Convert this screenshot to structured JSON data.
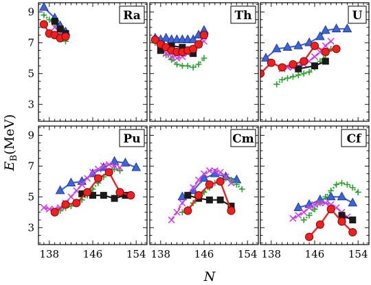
{
  "chart_data": {
    "type": "line",
    "xlabel": "N",
    "ylabel": "E_B(MeV)",
    "ylabel_parts": {
      "italic": "E",
      "sub": "B",
      "unit": "(MeV)"
    },
    "xlim": [
      136,
      156
    ],
    "ylim": [
      1.9,
      9.6
    ],
    "xticks": [
      138,
      146,
      154
    ],
    "yticks": [
      3,
      5,
      7,
      9
    ],
    "colors": {
      "blue": "#3a64d8",
      "black": "#1a1a1a",
      "red": "#ee2020",
      "magenta": "#d040e8",
      "green": "#28a428"
    },
    "panels": [
      {
        "label": "Ra",
        "series": [
          {
            "style": "blue-triangle",
            "x": [
              137,
              139,
              140,
              141
            ],
            "y": [
              9.3,
              8.6,
              8.1,
              7.7
            ]
          },
          {
            "style": "green-plus",
            "x": [
              137,
              138,
              139,
              140,
              141
            ],
            "y": [
              8.8,
              8.5,
              8.2,
              7.6,
              7.1
            ]
          },
          {
            "style": "magenta-cross",
            "x": [
              139,
              140,
              141
            ],
            "y": [
              8.0,
              7.7,
              7.5
            ]
          },
          {
            "style": "black-square",
            "x": [
              139,
              140,
              141
            ],
            "y": [
              8.4,
              7.9,
              7.6
            ]
          },
          {
            "style": "red-circle",
            "x": [
              137,
              138,
              139,
              140,
              141
            ],
            "y": [
              8.2,
              7.6,
              7.5,
              7.3,
              7.4
            ]
          }
        ]
      },
      {
        "label": "Th",
        "series": [
          {
            "style": "blue-triangle",
            "x": [
              137,
              138,
              139,
              140,
              141,
              142,
              143,
              144,
              145,
              146
            ],
            "y": [
              7.3,
              7.2,
              7.3,
              7.2,
              7.2,
              7.2,
              7.2,
              7.2,
              7.5,
              7.8
            ]
          },
          {
            "style": "magenta-cross",
            "x": [
              138,
              139,
              140,
              141,
              142,
              143,
              144,
              145,
              146
            ],
            "y": [
              6.6,
              6.3,
              6.1,
              6.0,
              6.1,
              6.3,
              6.6,
              6.9,
              7.1
            ]
          },
          {
            "style": "green-plus",
            "x": [
              137,
              138,
              139,
              140,
              141,
              142,
              143,
              144,
              145,
              146
            ],
            "y": [
              7.0,
              6.6,
              6.2,
              5.9,
              5.6,
              5.5,
              5.5,
              5.4,
              5.6,
              6.0
            ]
          },
          {
            "style": "black-square",
            "x": [
              138,
              140,
              142,
              144
            ],
            "y": [
              6.5,
              6.8,
              6.7,
              6.3
            ]
          },
          {
            "style": "red-circle",
            "x": [
              137,
              138,
              139,
              140,
              141,
              142,
              143,
              144,
              145,
              146
            ],
            "y": [
              7.2,
              6.9,
              6.7,
              6.5,
              6.4,
              6.4,
              6.5,
              6.6,
              6.9,
              7.5
            ]
          }
        ]
      },
      {
        "label": "U",
        "series": [
          {
            "style": "blue-triangle",
            "x": [
              137,
              139,
              141,
              143,
              145,
              147,
              148,
              150,
              152
            ],
            "y": [
              6.0,
              6.6,
              6.7,
              6.8,
              7.0,
              7.4,
              7.8,
              7.9,
              7.9
            ]
          },
          {
            "style": "green-plus",
            "x": [
              139,
              140,
              141,
              142,
              143,
              144,
              145,
              146,
              147,
              148,
              149
            ],
            "y": [
              4.3,
              4.6,
              4.7,
              4.8,
              4.9,
              5.0,
              5.1,
              5.4,
              5.8,
              6.2,
              6.6
            ]
          },
          {
            "style": "magenta-cross",
            "x": [
              140,
              141,
              142,
              143,
              144,
              145,
              146,
              147,
              148,
              149
            ],
            "y": [
              5.3,
              5.4,
              5.4,
              5.5,
              5.6,
              5.8,
              6.1,
              6.4,
              6.8,
              7.1
            ]
          },
          {
            "style": "black-square",
            "x": [
              143,
              146,
              148
            ],
            "y": [
              5.3,
              5.5,
              5.8
            ]
          },
          {
            "style": "red-circle",
            "x": [
              136,
              138,
              140,
              142,
              144,
              146,
              148,
              150
            ],
            "y": [
              5.0,
              5.7,
              5.4,
              5.6,
              5.8,
              6.8,
              6.4,
              6.6
            ]
          }
        ]
      },
      {
        "label": "Pu",
        "series": [
          {
            "style": "blue-triangle",
            "x": [
              140,
              142,
              144,
              146,
              148,
              150,
              152,
              154
            ],
            "y": [
              5.4,
              5.9,
              6.0,
              6.5,
              6.9,
              7.3,
              7.2,
              6.9
            ]
          },
          {
            "style": "magenta-cross",
            "x": [
              137,
              138,
              139,
              140,
              141,
              142,
              143,
              144,
              145,
              146,
              147,
              148,
              149,
              150,
              151
            ],
            "y": [
              4.3,
              4.2,
              4.2,
              4.3,
              4.6,
              5.0,
              5.4,
              5.8,
              6.2,
              6.6,
              6.8,
              7.0,
              7.1,
              7.0,
              6.9
            ]
          },
          {
            "style": "green-plus",
            "x": [
              140,
              141,
              142,
              143,
              144,
              145,
              146,
              147,
              148,
              149,
              150,
              151
            ],
            "y": [
              4.1,
              4.3,
              4.4,
              4.6,
              4.8,
              5.1,
              5.5,
              5.9,
              6.3,
              6.6,
              6.8,
              6.7
            ]
          },
          {
            "style": "black-square",
            "x": [
              144,
              146,
              148,
              150,
              152
            ],
            "y": [
              5.2,
              5.1,
              5.1,
              4.9,
              5.1
            ]
          },
          {
            "style": "red-circle",
            "x": [
              139,
              141,
              143,
              145,
              147,
              149,
              151,
              153
            ],
            "y": [
              4.0,
              4.5,
              4.6,
              5.3,
              6.2,
              6.6,
              5.3,
              5.1
            ]
          }
        ]
      },
      {
        "label": "Cm",
        "series": [
          {
            "style": "blue-triangle",
            "x": [
              142,
              144,
              146,
              148,
              150,
              152
            ],
            "y": [
              5.0,
              5.4,
              6.2,
              6.5,
              6.3,
              6.1
            ]
          },
          {
            "style": "magenta-cross",
            "x": [
              140,
              141,
              142,
              143,
              144,
              145,
              146,
              147,
              148,
              149,
              150,
              151
            ],
            "y": [
              3.5,
              4.0,
              4.6,
              5.1,
              5.6,
              6.1,
              6.5,
              6.7,
              6.7,
              6.6,
              6.3,
              5.9
            ]
          },
          {
            "style": "green-plus",
            "x": [
              142,
              143,
              144,
              145,
              146,
              147,
              148,
              149,
              150,
              151,
              152,
              153
            ],
            "y": [
              4.0,
              4.2,
              4.6,
              5.0,
              5.3,
              5.6,
              5.9,
              6.1,
              6.2,
              6.1,
              5.8,
              5.5
            ]
          },
          {
            "style": "black-square",
            "x": [
              143,
              145,
              147,
              149,
              151
            ],
            "y": [
              5.1,
              4.9,
              4.8,
              4.8,
              4.4
            ]
          },
          {
            "style": "red-circle",
            "x": [
              143,
              145,
              147,
              149,
              151
            ],
            "y": [
              4.1,
              5.1,
              5.8,
              6.0,
              4.1
            ]
          }
        ]
      },
      {
        "label": "Cf",
        "series": [
          {
            "style": "blue-triangle",
            "x": [
              143,
              145,
              147,
              149,
              151,
              153
            ],
            "y": [
              4.3,
              4.5,
              4.8,
              5.0,
              5.0,
              4.6
            ]
          },
          {
            "style": "magenta-cross",
            "x": [
              142,
              143,
              144,
              145,
              146,
              147,
              148,
              149,
              150,
              151,
              152
            ],
            "y": [
              3.6,
              3.8,
              4.0,
              4.3,
              4.5,
              4.6,
              4.6,
              4.5,
              4.3,
              4.0,
              3.7
            ]
          },
          {
            "style": "green-plus",
            "x": [
              144,
              145,
              146,
              147,
              148,
              149,
              150,
              151,
              152,
              153,
              154
            ],
            "y": [
              3.5,
              3.8,
              4.2,
              4.6,
              5.0,
              5.4,
              5.8,
              5.9,
              5.8,
              5.6,
              5.3
            ]
          },
          {
            "style": "black-square",
            "x": [
              151,
              153
            ],
            "y": [
              3.8,
              3.5
            ]
          },
          {
            "style": "red-circle",
            "x": [
              145,
              147,
              149,
              151,
              153
            ],
            "y": [
              2.4,
              3.2,
              4.2,
              3.4,
              2.7
            ]
          }
        ]
      }
    ]
  }
}
